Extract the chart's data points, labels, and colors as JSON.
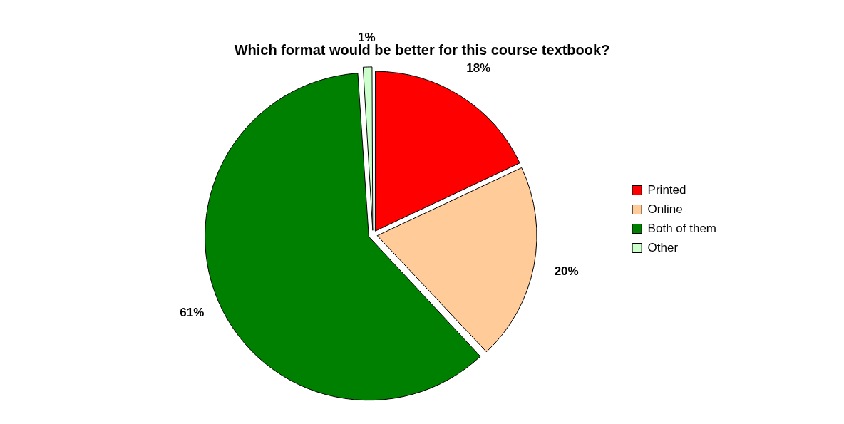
{
  "chart_data": {
    "type": "pie",
    "title": "Which format would be better for this course textbook?",
    "categories": [
      "Printed",
      "Online",
      "Both of them",
      "Other"
    ],
    "values": [
      18,
      20,
      61,
      1
    ],
    "colors": [
      "#ff0000",
      "#ffcc99",
      "#008000",
      "#ccffcc"
    ],
    "value_labels": [
      "18%",
      "20%",
      "61%",
      "1%"
    ],
    "legend": "right"
  }
}
